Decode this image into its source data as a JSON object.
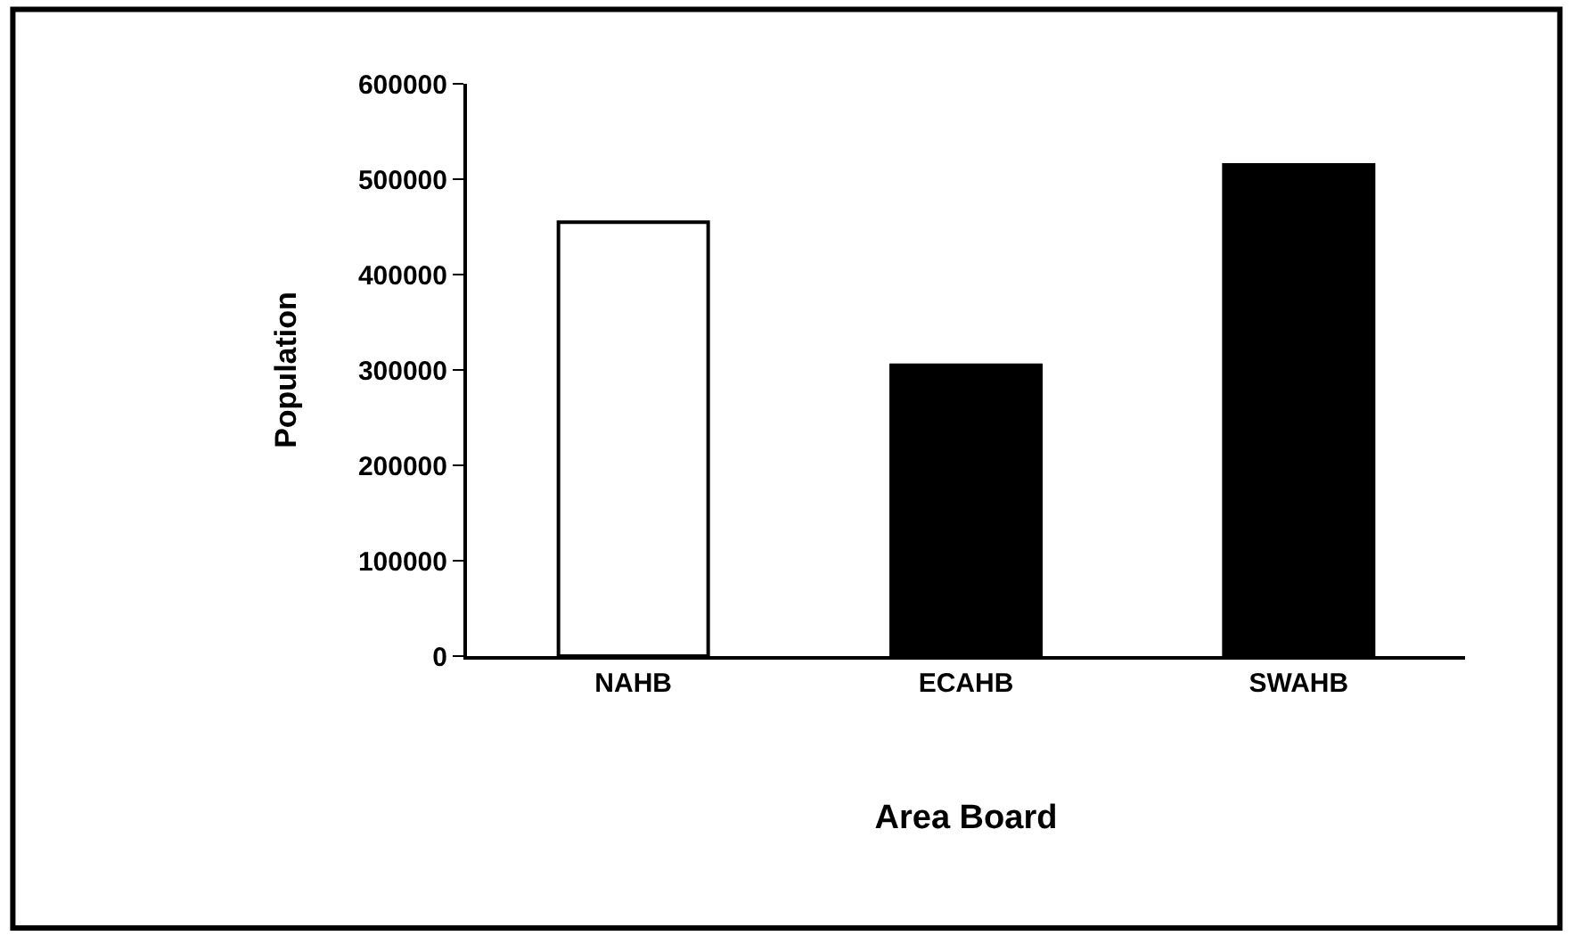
{
  "chart_data": {
    "type": "bar",
    "xlabel": "Area Board",
    "ylabel": "Population",
    "categories": [
      "NAHB",
      "ECAHB",
      "SWAHB"
    ],
    "values": [
      455000,
      305000,
      515000
    ],
    "colors": [
      "#ffffff",
      "#000000",
      "#000000"
    ],
    "ylim": [
      0,
      600000
    ],
    "yticks": [
      0,
      100000,
      200000,
      300000,
      400000,
      500000,
      600000
    ],
    "legend": false
  }
}
